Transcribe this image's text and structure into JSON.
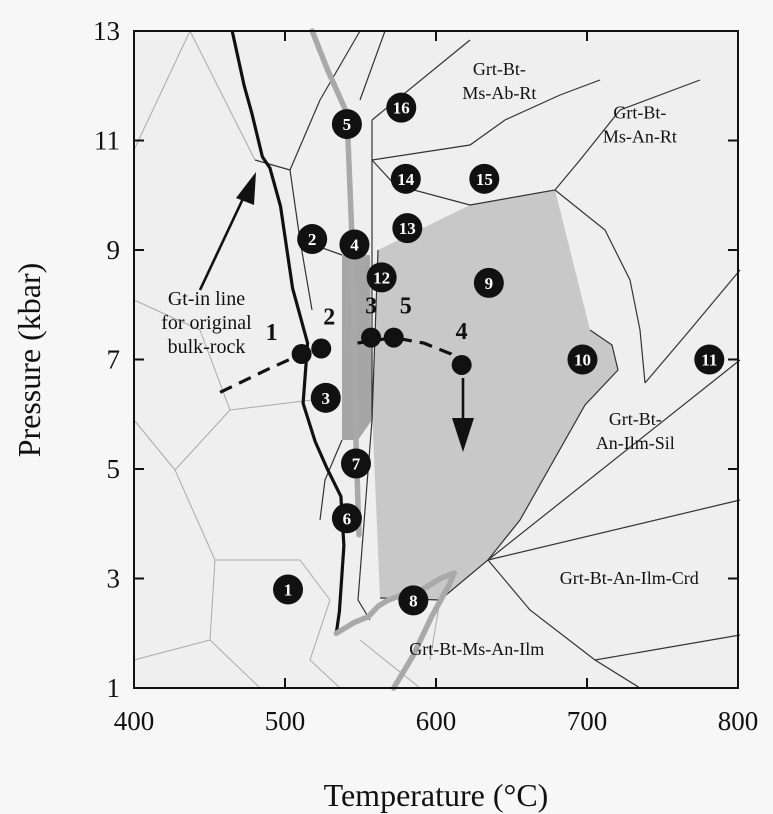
{
  "chart_data": {
    "type": "scatter",
    "xlabel": "Temperature (°C)",
    "ylabel": "Pressure (kbar)",
    "xlim": [
      400,
      800
    ],
    "ylim": [
      1,
      13
    ],
    "x_ticks": [
      400,
      500,
      600,
      700,
      800
    ],
    "y_ticks": [
      1,
      3,
      5,
      7,
      9,
      11,
      13
    ],
    "grid": false,
    "field_labels": [
      {
        "text": "Grt-Bt-\nMs-Ab-Rt",
        "x": 642,
        "y": 12.2
      },
      {
        "text": "Grt-Bt-\nMs-An-Rt",
        "x": 735,
        "y": 11.4
      },
      {
        "text": "Grt-Bt-\nAn-Ilm-Sil",
        "x": 732,
        "y": 5.8
      },
      {
        "text": "Grt-Bt-An-Ilm-Crd",
        "x": 728,
        "y": 2.9
      },
      {
        "text": "Grt-Bt-Ms-An-Ilm",
        "x": 627,
        "y": 1.6
      }
    ],
    "annotation": {
      "text": "Gt-in line\nfor original\nbulk-rock",
      "x": 448,
      "y": 8.0
    },
    "numbered_fields": [
      {
        "label": "1",
        "x": 502,
        "y": 2.8
      },
      {
        "label": "2",
        "x": 518,
        "y": 9.2
      },
      {
        "label": "3",
        "x": 527,
        "y": 6.3
      },
      {
        "label": "4",
        "x": 546,
        "y": 9.1
      },
      {
        "label": "5",
        "x": 541,
        "y": 11.3
      },
      {
        "label": "6",
        "x": 541,
        "y": 4.1
      },
      {
        "label": "7",
        "x": 547,
        "y": 5.1
      },
      {
        "label": "8",
        "x": 585,
        "y": 2.6
      },
      {
        "label": "9",
        "x": 635,
        "y": 8.4
      },
      {
        "label": "10",
        "x": 697,
        "y": 7.0
      },
      {
        "label": "11",
        "x": 781,
        "y": 7.0
      },
      {
        "label": "12",
        "x": 564,
        "y": 8.5
      },
      {
        "label": "13",
        "x": 581,
        "y": 9.4
      },
      {
        "label": "14",
        "x": 580,
        "y": 10.3
      },
      {
        "label": "15",
        "x": 632,
        "y": 10.3
      },
      {
        "label": "16",
        "x": 577,
        "y": 11.6
      }
    ],
    "points": [
      {
        "label": "1",
        "x": 511,
        "y": 7.1
      },
      {
        "label": "2",
        "x": 524,
        "y": 7.2
      },
      {
        "label": "3",
        "x": 557,
        "y": 7.4
      },
      {
        "label": "5",
        "x": 572,
        "y": 7.4
      },
      {
        "label": "4",
        "x": 617,
        "y": 6.9
      }
    ],
    "series": [
      {
        "style": "gt-in-line",
        "x": [
          465,
          473,
          478,
          485,
          490,
          497,
          505,
          515,
          512,
          520,
          528,
          537,
          539,
          536,
          534
        ],
        "y": [
          13,
          12,
          11.5,
          10.7,
          10.5,
          9.8,
          8.3,
          7.3,
          6.2,
          5.5,
          5.0,
          4.5,
          3.6,
          2.4,
          2.0
        ]
      },
      {
        "style": "grey-thick",
        "x": [
          518,
          528,
          541,
          544,
          546,
          547,
          549
        ],
        "y": [
          13,
          12.3,
          11.5,
          9.5,
          7.0,
          5.5,
          3.8
        ]
      },
      {
        "style": "grey-thick",
        "x": [
          534,
          546,
          555,
          562,
          568,
          577,
          591,
          603,
          612
        ],
        "y": [
          2.0,
          2.2,
          2.3,
          2.5,
          2.6,
          2.7,
          2.8,
          3.0,
          3.1
        ]
      },
      {
        "style": "grey-thick",
        "x": [
          572,
          585,
          597,
          609,
          612
        ],
        "y": [
          1.0,
          1.6,
          2.3,
          2.9,
          3.1
        ]
      },
      {
        "style": "dashed",
        "x": [
          457,
          472,
          487,
          511
        ],
        "y": [
          6.4,
          6.6,
          6.8,
          7.1
        ]
      },
      {
        "style": "dashed",
        "x": [
          548,
          572,
          592,
          610,
          617
        ],
        "y": [
          7.3,
          7.4,
          7.3,
          7.1,
          6.9
        ]
      }
    ]
  }
}
